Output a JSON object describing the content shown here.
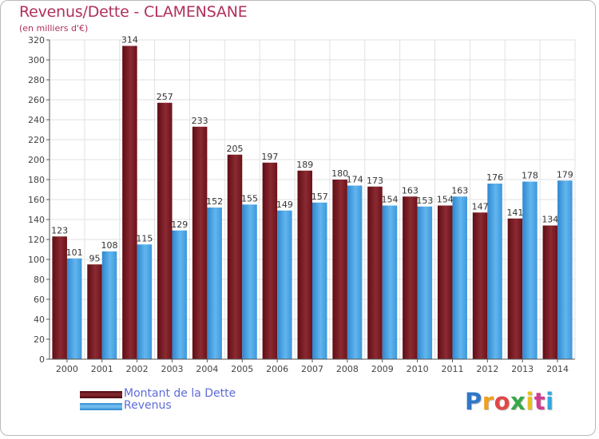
{
  "header": {
    "title": "Revenus/Dette - CLAMENSANE",
    "subtitle": "(en milliers d'€)"
  },
  "chart_data": {
    "type": "bar",
    "title": "Revenus/Dette - CLAMENSANE",
    "ylabel": "(en milliers d'€)",
    "xlabel": "",
    "categories": [
      "2000",
      "2001",
      "2002",
      "2003",
      "2004",
      "2005",
      "2006",
      "2007",
      "2008",
      "2009",
      "2010",
      "2011",
      "2012",
      "2013",
      "2014"
    ],
    "series": [
      {
        "name": "Montant de la Dette",
        "color": "#7b1a22",
        "values": [
          123,
          95,
          314,
          257,
          233,
          205,
          197,
          189,
          180,
          173,
          163,
          154,
          147,
          141,
          134
        ],
        "labels": [
          "123",
          "95",
          "314",
          "257",
          "233",
          "205",
          "197",
          "189",
          "180",
          "173",
          "163",
          "154",
          "147",
          "141",
          "134"
        ]
      },
      {
        "name": "Revenus",
        "color": "#4aa3e0",
        "values": [
          101,
          108,
          115,
          129,
          152,
          155,
          149,
          157,
          174,
          154,
          153,
          163,
          176,
          178,
          179
        ],
        "labels": [
          "101",
          "108",
          "115",
          "129",
          "152",
          "155",
          "149",
          "157",
          "174",
          "154",
          "153",
          "163",
          "176",
          "178",
          "179"
        ]
      }
    ],
    "ylim": [
      0,
      320
    ],
    "yticks": [
      0,
      20,
      40,
      60,
      80,
      100,
      120,
      140,
      160,
      180,
      200,
      220,
      240,
      260,
      280,
      300,
      320
    ],
    "grid": true,
    "legend_position": "bottom-left"
  },
  "legend": {
    "debt_label": "Montant de la Dette",
    "revenue_label": "Revenus"
  },
  "logo": {
    "letters": [
      "P",
      "r",
      "o",
      "x",
      "i",
      "t",
      "i"
    ],
    "colors": [
      "#2f77c8",
      "#f0a020",
      "#e04848",
      "#38a848",
      "#e8c020",
      "#d23c8c",
      "#2fa8e0"
    ]
  }
}
